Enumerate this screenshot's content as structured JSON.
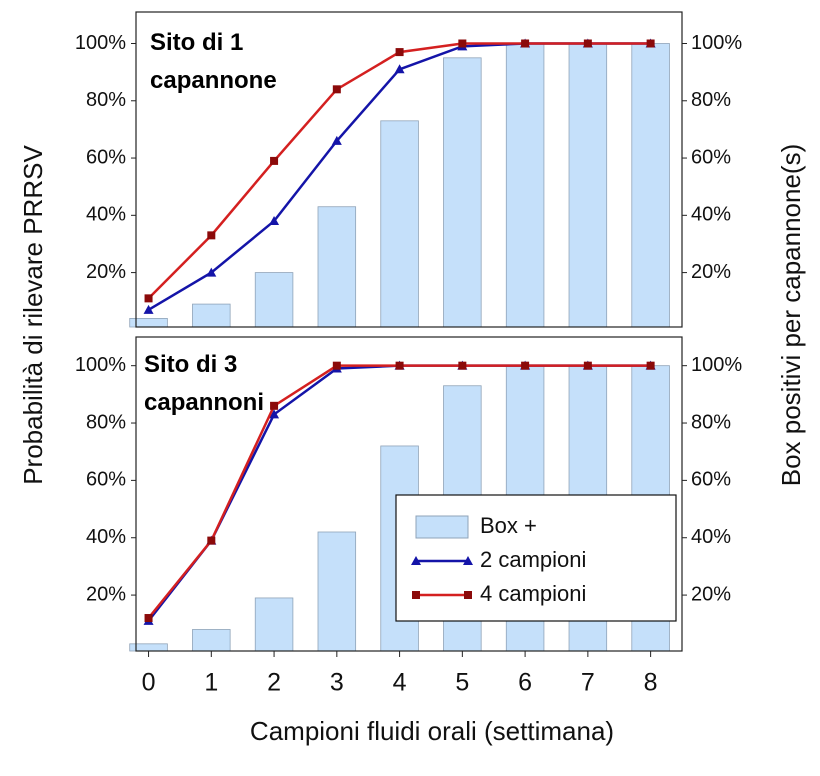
{
  "chart_data": [
    {
      "type": "bar_line",
      "title": "Sito di 1 capannone",
      "ylabel": "Probabilità di rilevare PRRSV",
      "y2label": "Box positivi per capannone(s)",
      "x": [
        0,
        1,
        2,
        3,
        4,
        5,
        6,
        7,
        8
      ],
      "xlim": [
        -0.2,
        8.5
      ],
      "ylim": [
        1,
        111
      ],
      "y2lim": [
        1,
        111
      ],
      "yticks": [
        {
          "value": 20,
          "label": "20%"
        },
        {
          "value": 40,
          "label": "40%"
        },
        {
          "value": 60,
          "label": "60%"
        },
        {
          "value": 80,
          "label": "80%"
        },
        {
          "value": 100,
          "label": "100%"
        }
      ],
      "y2ticks": [
        {
          "value": 20,
          "label": "20%"
        },
        {
          "value": 40,
          "label": "40%"
        },
        {
          "value": 60,
          "label": "60%"
        },
        {
          "value": 80,
          "label": "80%"
        },
        {
          "value": 100,
          "label": "100%"
        }
      ],
      "series": [
        {
          "kind": "bar",
          "axis": "y2",
          "color": "#c5e0fa",
          "values": [
            4,
            9,
            20,
            43,
            73,
            95,
            100,
            100,
            100
          ]
        },
        {
          "kind": "line",
          "marker": "triangle",
          "color": "#1414a8",
          "values": [
            7,
            20,
            38,
            66,
            91,
            99,
            100,
            100,
            100
          ]
        },
        {
          "kind": "line",
          "marker": "square",
          "color": "#d42020",
          "values": [
            11,
            33,
            59,
            84,
            97,
            100,
            100,
            100,
            100
          ]
        }
      ]
    },
    {
      "type": "bar_line",
      "title": "Sito di 3 capannoni",
      "xlabel": "Campioni fluidi orali (settimana)",
      "x": [
        0,
        1,
        2,
        3,
        4,
        5,
        6,
        7,
        8
      ],
      "xlim": [
        -0.2,
        8.5
      ],
      "ylim": [
        0.5,
        110
      ],
      "y2lim": [
        0.5,
        110
      ],
      "xticks": [
        0,
        1,
        2,
        3,
        4,
        5,
        6,
        7,
        8
      ],
      "yticks": [
        {
          "value": 20,
          "label": "20%"
        },
        {
          "value": 40,
          "label": "40%"
        },
        {
          "value": 60,
          "label": "60%"
        },
        {
          "value": 80,
          "label": "80%"
        },
        {
          "value": 100,
          "label": "100%"
        }
      ],
      "y2ticks": [
        {
          "value": 20,
          "label": "20%"
        },
        {
          "value": 40,
          "label": "40%"
        },
        {
          "value": 60,
          "label": "60%"
        },
        {
          "value": 80,
          "label": "80%"
        },
        {
          "value": 100,
          "label": "100%"
        }
      ],
      "legend": "lower right",
      "series": [
        {
          "name": "Box +",
          "kind": "bar",
          "axis": "y2",
          "color": "#c5e0fa",
          "values": [
            3,
            8,
            19,
            42,
            72,
            93,
            100,
            100,
            100
          ]
        },
        {
          "name": "2 campioni",
          "kind": "line",
          "marker": "triangle",
          "color": "#1414a8",
          "values": [
            11,
            39,
            83,
            99,
            100,
            100,
            100,
            100,
            100
          ]
        },
        {
          "name": "4 campioni",
          "kind": "line",
          "marker": "square",
          "color": "#d42020",
          "values": [
            12,
            39,
            86,
            100,
            100,
            100,
            100,
            100,
            100
          ]
        }
      ]
    }
  ]
}
